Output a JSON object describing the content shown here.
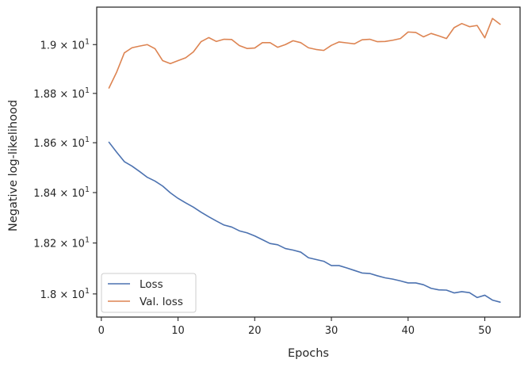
{
  "chart_data": {
    "type": "line",
    "title": "",
    "xlabel": "Epochs",
    "ylabel": "Negative log-likelihood",
    "xlim": [
      -0.6,
      54.6
    ],
    "ylim": [
      17.91,
      19.155
    ],
    "y_scale": "log",
    "grid": false,
    "legend_position": "lower-left",
    "x_ticks": [
      {
        "value": 0,
        "label": "0"
      },
      {
        "value": 10,
        "label": "10"
      },
      {
        "value": 20,
        "label": "20"
      },
      {
        "value": 30,
        "label": "30"
      },
      {
        "value": 40,
        "label": "40"
      },
      {
        "value": 50,
        "label": "50"
      }
    ],
    "y_ticks": [
      {
        "value": 18.0,
        "mantissa": "1.8",
        "exponent": "1"
      },
      {
        "value": 18.2,
        "mantissa": "1.82",
        "exponent": "1"
      },
      {
        "value": 18.4,
        "mantissa": "1.84",
        "exponent": "1"
      },
      {
        "value": 18.6,
        "mantissa": "1.86",
        "exponent": "1"
      },
      {
        "value": 18.8,
        "mantissa": "1.88",
        "exponent": "1"
      },
      {
        "value": 19.0,
        "mantissa": "1.9",
        "exponent": "1"
      }
    ],
    "x": [
      1,
      2,
      3,
      4,
      5,
      6,
      7,
      8,
      9,
      10,
      11,
      12,
      13,
      14,
      15,
      16,
      17,
      18,
      19,
      20,
      21,
      22,
      23,
      24,
      25,
      26,
      27,
      28,
      29,
      30,
      31,
      32,
      33,
      34,
      35,
      36,
      37,
      38,
      39,
      40,
      41,
      42,
      43,
      44,
      45,
      46,
      47,
      48,
      49,
      50,
      51,
      52
    ],
    "series": [
      {
        "name": "Loss",
        "color": "#4c72b0",
        "values": [
          18.602,
          18.562,
          18.524,
          18.506,
          18.484,
          18.461,
          18.446,
          18.426,
          18.399,
          18.377,
          18.359,
          18.342,
          18.322,
          18.304,
          18.287,
          18.271,
          18.263,
          18.248,
          18.24,
          18.228,
          18.213,
          18.198,
          18.193,
          18.178,
          18.172,
          18.164,
          18.142,
          18.135,
          18.128,
          18.111,
          18.111,
          18.102,
          18.092,
          18.082,
          18.08,
          18.071,
          18.063,
          18.058,
          18.051,
          18.043,
          18.043,
          18.036,
          18.022,
          18.016,
          18.015,
          18.004,
          18.009,
          18.005,
          17.986,
          17.995,
          17.976,
          17.968
        ]
      },
      {
        "name": "Val. loss",
        "color": "#dd8452",
        "values": [
          18.822,
          18.887,
          18.966,
          18.987,
          18.994,
          19.0,
          18.983,
          18.934,
          18.922,
          18.934,
          18.946,
          18.97,
          19.012,
          19.029,
          19.013,
          19.022,
          19.021,
          18.996,
          18.984,
          18.986,
          19.008,
          19.008,
          18.989,
          19.0,
          19.016,
          19.008,
          18.987,
          18.98,
          18.976,
          18.997,
          19.011,
          19.007,
          19.003,
          19.02,
          19.022,
          19.012,
          19.013,
          19.018,
          19.025,
          19.052,
          19.05,
          19.032,
          19.046,
          19.036,
          19.025,
          19.07,
          19.087,
          19.074,
          19.079,
          19.028,
          19.108,
          19.084
        ]
      }
    ]
  }
}
